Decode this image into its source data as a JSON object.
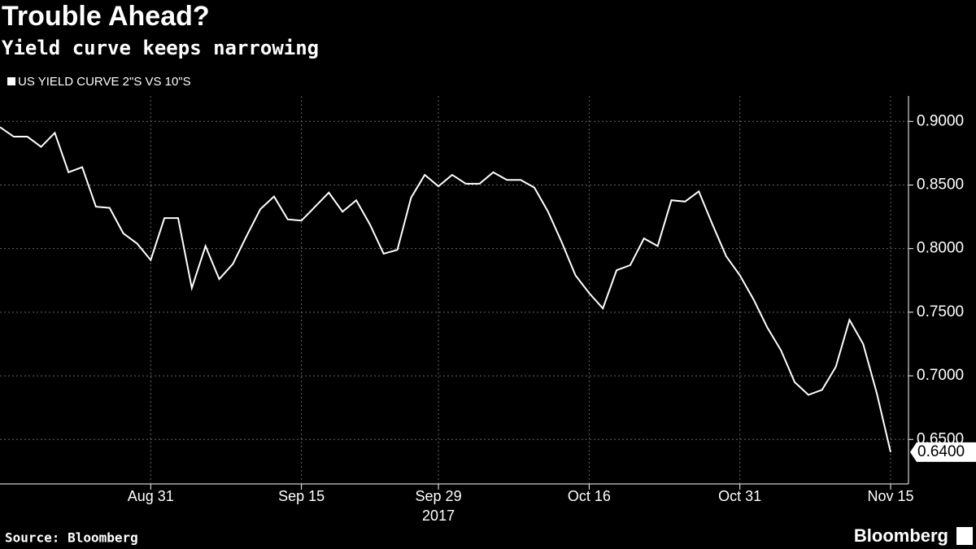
{
  "chart_data": {
    "type": "line",
    "title": "Trouble Ahead?",
    "subtitle": "Yield curve keeps narrowing",
    "source": "Source: Bloomberg",
    "brand": "Bloomberg",
    "x_sublabel": "2017",
    "categories": [
      null,
      null,
      null,
      null,
      null,
      null,
      null,
      null,
      null,
      null,
      null,
      "Aug 31",
      null,
      null,
      null,
      null,
      null,
      null,
      null,
      null,
      null,
      null,
      "Sep 15",
      null,
      null,
      null,
      null,
      null,
      null,
      null,
      null,
      null,
      "Sep 29",
      null,
      null,
      null,
      null,
      null,
      null,
      null,
      null,
      null,
      null,
      "Oct 16",
      null,
      null,
      null,
      null,
      null,
      null,
      null,
      null,
      null,
      null,
      "Oct 31",
      null,
      null,
      null,
      null,
      null,
      null,
      null,
      null,
      null,
      null,
      "Nov 15"
    ],
    "series": [
      {
        "name": "US YIELD CURVE 2\"S VS 10\"S",
        "color": "#ffffff",
        "values": [
          0.8955,
          0.888,
          0.888,
          0.88,
          0.891,
          0.86,
          0.864,
          0.833,
          0.832,
          0.812,
          0.804,
          0.791,
          0.824,
          0.824,
          0.769,
          0.802,
          0.776,
          0.788,
          0.81,
          0.831,
          0.841,
          0.823,
          0.822,
          0.833,
          0.844,
          0.829,
          0.838,
          0.819,
          0.796,
          0.799,
          0.84,
          0.858,
          0.849,
          0.858,
          0.851,
          0.851,
          0.86,
          0.854,
          0.854,
          0.848,
          0.829,
          0.805,
          0.779,
          0.765,
          0.753,
          0.783,
          0.787,
          0.808,
          0.802,
          0.838,
          0.837,
          0.845,
          0.819,
          0.794,
          0.779,
          0.76,
          0.738,
          0.72,
          0.695,
          0.685,
          0.689,
          0.707,
          0.744,
          0.725,
          0.686,
          0.64
        ],
        "last_value_label": "0.6400"
      }
    ],
    "ylim": [
      0.615,
      0.92
    ],
    "yticks": [
      {
        "value": 0.65,
        "label": "0.6500"
      },
      {
        "value": 0.7,
        "label": "0.7000"
      },
      {
        "value": 0.75,
        "label": "0.7500"
      },
      {
        "value": 0.8,
        "label": "0.8000"
      },
      {
        "value": 0.85,
        "label": "0.8500"
      },
      {
        "value": 0.9,
        "label": "0.9000"
      }
    ],
    "grid": true
  }
}
